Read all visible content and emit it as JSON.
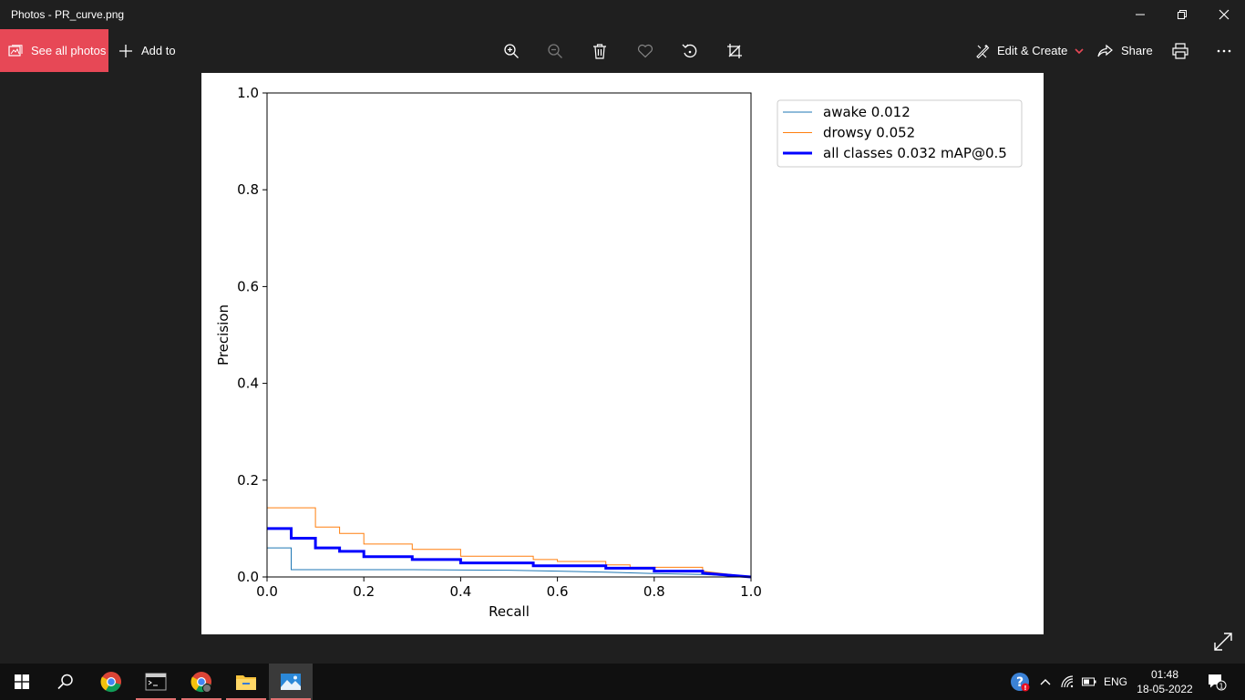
{
  "window": {
    "title": "Photos - PR_curve.png"
  },
  "toolbar": {
    "see_all_photos": "See all photos",
    "add_to": "Add to",
    "edit_create": "Edit & Create",
    "share": "Share",
    "accent": "#e74856"
  },
  "chart_data": {
    "type": "line",
    "xlabel": "Recall",
    "ylabel": "Precision",
    "xlim": [
      0,
      1
    ],
    "ylim": [
      0,
      1
    ],
    "x_ticks": [
      "0.0",
      "0.2",
      "0.4",
      "0.6",
      "0.8",
      "1.0"
    ],
    "y_ticks": [
      "0.0",
      "0.2",
      "0.4",
      "0.6",
      "0.8",
      "1.0"
    ],
    "grid": false,
    "legend_position": "outside-top-right",
    "series": [
      {
        "name": "awake 0.012",
        "color": "#1f77b4",
        "width": 1,
        "x": [
          0,
          0.05,
          0.05,
          0.3,
          0.5,
          0.6,
          0.7,
          0.8,
          0.9,
          1.0
        ],
        "y": [
          0.06,
          0.06,
          0.015,
          0.015,
          0.014,
          0.012,
          0.01,
          0.007,
          0.005,
          0.0
        ]
      },
      {
        "name": "drowsy 0.052",
        "color": "#ff7f0e",
        "width": 1,
        "x": [
          0,
          0.1,
          0.1,
          0.15,
          0.15,
          0.2,
          0.2,
          0.3,
          0.3,
          0.4,
          0.4,
          0.55,
          0.55,
          0.6,
          0.6,
          0.7,
          0.7,
          0.75,
          0.75,
          0.9,
          0.9,
          1.0
        ],
        "y": [
          0.143,
          0.143,
          0.103,
          0.103,
          0.09,
          0.09,
          0.068,
          0.068,
          0.057,
          0.057,
          0.043,
          0.043,
          0.036,
          0.036,
          0.032,
          0.032,
          0.025,
          0.025,
          0.02,
          0.02,
          0.012,
          0.0
        ]
      },
      {
        "name": "all classes 0.032 mAP@0.5",
        "color": "#0000ff",
        "width": 3,
        "x": [
          0,
          0.05,
          0.05,
          0.1,
          0.1,
          0.15,
          0.15,
          0.2,
          0.2,
          0.3,
          0.3,
          0.4,
          0.4,
          0.55,
          0.55,
          0.7,
          0.7,
          0.8,
          0.8,
          0.9,
          0.9,
          1.0
        ],
        "y": [
          0.1,
          0.1,
          0.08,
          0.08,
          0.06,
          0.06,
          0.053,
          0.053,
          0.042,
          0.042,
          0.036,
          0.036,
          0.029,
          0.029,
          0.023,
          0.023,
          0.018,
          0.018,
          0.012,
          0.012,
          0.008,
          0.0
        ]
      }
    ]
  },
  "taskbar": {
    "lang": "ENG",
    "time": "01:48",
    "date": "18-05-2022",
    "notification_count": "1"
  }
}
